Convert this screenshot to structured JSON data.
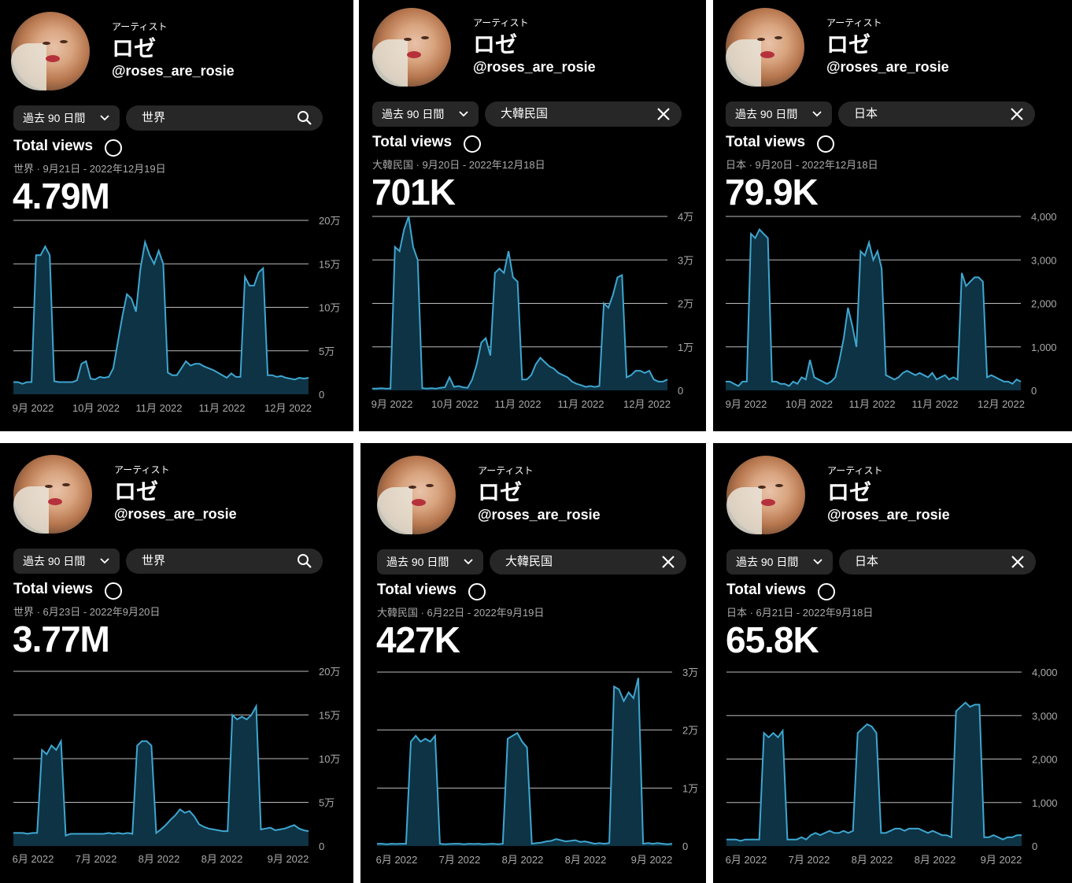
{
  "panels": [
    {
      "profile": {
        "kind": "アーティスト",
        "name": "ロゼ",
        "handle": "@roses_are_rosie"
      },
      "period": "過去 90 日間",
      "region": "世界",
      "region_icon": "search-icon",
      "title": "Total views",
      "subtitle": "世界 · 9月21日 - 2022年12月19日",
      "total": "4.79M",
      "chart_data": {
        "type": "area",
        "y_tick_labels": [
          "20万",
          "15万",
          "10万",
          "5万",
          "0"
        ],
        "ylim": [
          0,
          200000
        ],
        "x_tick_labels": [
          "9月 2022",
          "10月 2022",
          "11月 2022",
          "11月 2022",
          "12月 2022"
        ],
        "color": "#3ea6d0",
        "values": [
          14000,
          14000,
          12000,
          14000,
          14000,
          160000,
          160000,
          170000,
          160000,
          15000,
          14000,
          14000,
          14000,
          14000,
          16000,
          35000,
          38000,
          18000,
          17000,
          20000,
          19000,
          20000,
          30000,
          60000,
          90000,
          115000,
          110000,
          95000,
          145000,
          175000,
          160000,
          150000,
          165000,
          150000,
          25000,
          22000,
          22000,
          30000,
          38000,
          33000,
          35000,
          35000,
          32000,
          30000,
          28000,
          25000,
          22000,
          19000,
          24000,
          20000,
          20000,
          135000,
          125000,
          125000,
          140000,
          145000,
          22000,
          22000,
          20000,
          21000,
          19000,
          18000,
          17000,
          19000,
          18000,
          19000
        ]
      }
    },
    {
      "profile": {
        "kind": "アーティスト",
        "name": "ロゼ",
        "handle": "@roses_are_rosie"
      },
      "period": "過去 90 日間",
      "region": "大韓民国",
      "region_icon": "close-icon",
      "title": "Total views",
      "subtitle": "大韓民国 · 9月20日 - 2022年12月18日",
      "total": "701K",
      "chart_data": {
        "type": "area",
        "y_tick_labels": [
          "4万",
          "3万",
          "2万",
          "1万",
          "0"
        ],
        "ylim": [
          0,
          40000
        ],
        "x_tick_labels": [
          "9月 2022",
          "10月 2022",
          "11月 2022",
          "11月 2022",
          "12月 2022"
        ],
        "color": "#3ea6d0",
        "values": [
          400,
          400,
          500,
          400,
          400,
          33000,
          32000,
          37000,
          40000,
          33000,
          30000,
          500,
          400,
          500,
          400,
          600,
          700,
          3000,
          800,
          1000,
          700,
          600,
          2500,
          6000,
          11000,
          12000,
          8000,
          27000,
          28000,
          27000,
          32000,
          26000,
          25000,
          2500,
          2500,
          3500,
          6000,
          7500,
          6500,
          5500,
          5000,
          4000,
          3500,
          3000,
          2000,
          1500,
          1200,
          800,
          1000,
          800,
          1000,
          20000,
          19000,
          22000,
          26000,
          26500,
          3000,
          3500,
          4500,
          4500,
          4000,
          4500,
          2500,
          2000,
          2000,
          2500
        ]
      }
    },
    {
      "profile": {
        "kind": "アーティスト",
        "name": "ロゼ",
        "handle": "@roses_are_rosie"
      },
      "period": "過去 90 日間",
      "region": "日本",
      "region_icon": "close-icon",
      "title": "Total views",
      "subtitle": "日本 · 9月20日 - 2022年12月18日",
      "total": "79.9K",
      "chart_data": {
        "type": "area",
        "y_tick_labels": [
          "4,000",
          "3,000",
          "2,000",
          "1,000",
          "0"
        ],
        "ylim": [
          0,
          4000
        ],
        "x_tick_labels": [
          "9月 2022",
          "10月 2022",
          "11月 2022",
          "11月 2022",
          "12月 2022"
        ],
        "color": "#3ea6d0",
        "values": [
          200,
          200,
          150,
          100,
          200,
          200,
          3600,
          3500,
          3700,
          3600,
          3500,
          200,
          200,
          150,
          150,
          100,
          200,
          150,
          300,
          250,
          700,
          300,
          250,
          200,
          150,
          200,
          300,
          700,
          1200,
          1900,
          1500,
          1000,
          3200,
          3100,
          3400,
          3000,
          3200,
          2800,
          350,
          300,
          250,
          300,
          400,
          450,
          400,
          350,
          400,
          350,
          300,
          400,
          250,
          300,
          350,
          250,
          300,
          250,
          2700,
          2400,
          2500,
          2600,
          2600,
          2500,
          300,
          350,
          300,
          250,
          200,
          200,
          150,
          250,
          200
        ]
      }
    },
    {
      "profile": {
        "kind": "アーティスト",
        "name": "ロゼ",
        "handle": "@roses_are_rosie"
      },
      "period": "過去 90 日間",
      "region": "世界",
      "region_icon": "search-icon",
      "title": "Total views",
      "subtitle": "世界 · 6月23日 - 2022年9月20日",
      "total": "3.77M",
      "chart_data": {
        "type": "area",
        "y_tick_labels": [
          "20万",
          "15万",
          "10万",
          "5万",
          "0"
        ],
        "ylim": [
          0,
          200000
        ],
        "x_tick_labels": [
          "6月 2022",
          "7月 2022",
          "8月 2022",
          "8月 2022",
          "9月 2022"
        ],
        "color": "#3ea6d0",
        "values": [
          15000,
          15000,
          15000,
          14000,
          15000,
          15000,
          110000,
          105000,
          115000,
          110000,
          120000,
          12000,
          14000,
          14000,
          14000,
          14000,
          14000,
          14000,
          14000,
          14000,
          15000,
          14000,
          15000,
          14000,
          15000,
          14000,
          115000,
          120000,
          120000,
          115000,
          15000,
          19000,
          24000,
          30000,
          35000,
          42000,
          38000,
          40000,
          34000,
          25000,
          22000,
          20000,
          19000,
          18000,
          17000,
          17000,
          150000,
          145000,
          148000,
          145000,
          150000,
          160000,
          19000,
          20000,
          21000,
          18000,
          19000,
          20000,
          22000,
          24000,
          20000,
          18000,
          17000
        ]
      }
    },
    {
      "profile": {
        "kind": "アーティスト",
        "name": "ロゼ",
        "handle": "@roses_are_rosie"
      },
      "period": "過去 90 日間",
      "region": "大韓民国",
      "region_icon": "close-icon",
      "title": "Total views",
      "subtitle": "大韓民国 · 6月22日 - 2022年9月19日",
      "total": "427K",
      "chart_data": {
        "type": "area",
        "y_tick_labels": [
          "3万",
          "2万",
          "1万",
          "0"
        ],
        "ylim": [
          0,
          30000
        ],
        "x_tick_labels": [
          "6月 2022",
          "7月 2022",
          "8月 2022",
          "8月 2022",
          "9月 2022"
        ],
        "color": "#3ea6d0",
        "values": [
          400,
          400,
          300,
          400,
          350,
          400,
          400,
          18000,
          19000,
          18000,
          18500,
          18000,
          19000,
          400,
          300,
          350,
          400,
          400,
          300,
          400,
          350,
          400,
          300,
          350,
          400,
          300,
          400,
          18500,
          19000,
          19500,
          18000,
          17000,
          400,
          500,
          600,
          800,
          900,
          1200,
          1000,
          800,
          900,
          1000,
          700,
          800,
          600,
          400,
          500,
          400,
          500,
          27500,
          27000,
          25000,
          26500,
          25500,
          29000,
          400,
          500,
          400,
          500,
          400,
          300,
          400
        ]
      }
    },
    {
      "profile": {
        "kind": "アーティスト",
        "name": "ロゼ",
        "handle": "@roses_are_rosie"
      },
      "period": "過去 90 日間",
      "region": "日本",
      "region_icon": "close-icon",
      "title": "Total views",
      "subtitle": "日本 · 6月21日 - 2022年9月18日",
      "total": "65.8K",
      "chart_data": {
        "type": "area",
        "y_tick_labels": [
          "4,000",
          "3,000",
          "2,000",
          "1,000",
          "0"
        ],
        "ylim": [
          0,
          4000
        ],
        "x_tick_labels": [
          "6月 2022",
          "7月 2022",
          "8月 2022",
          "8月 2022",
          "9月 2022"
        ],
        "color": "#3ea6d0",
        "values": [
          150,
          150,
          150,
          120,
          150,
          150,
          150,
          150,
          2600,
          2500,
          2600,
          2500,
          2650,
          150,
          150,
          150,
          200,
          150,
          250,
          300,
          250,
          300,
          350,
          300,
          300,
          350,
          300,
          350,
          2600,
          2700,
          2800,
          2750,
          2600,
          300,
          300,
          350,
          400,
          400,
          350,
          400,
          400,
          400,
          350,
          300,
          350,
          300,
          250,
          250,
          200,
          3100,
          3200,
          3300,
          3200,
          3250,
          3250,
          200,
          200,
          250,
          200,
          150,
          200,
          200,
          250,
          250
        ]
      }
    }
  ]
}
